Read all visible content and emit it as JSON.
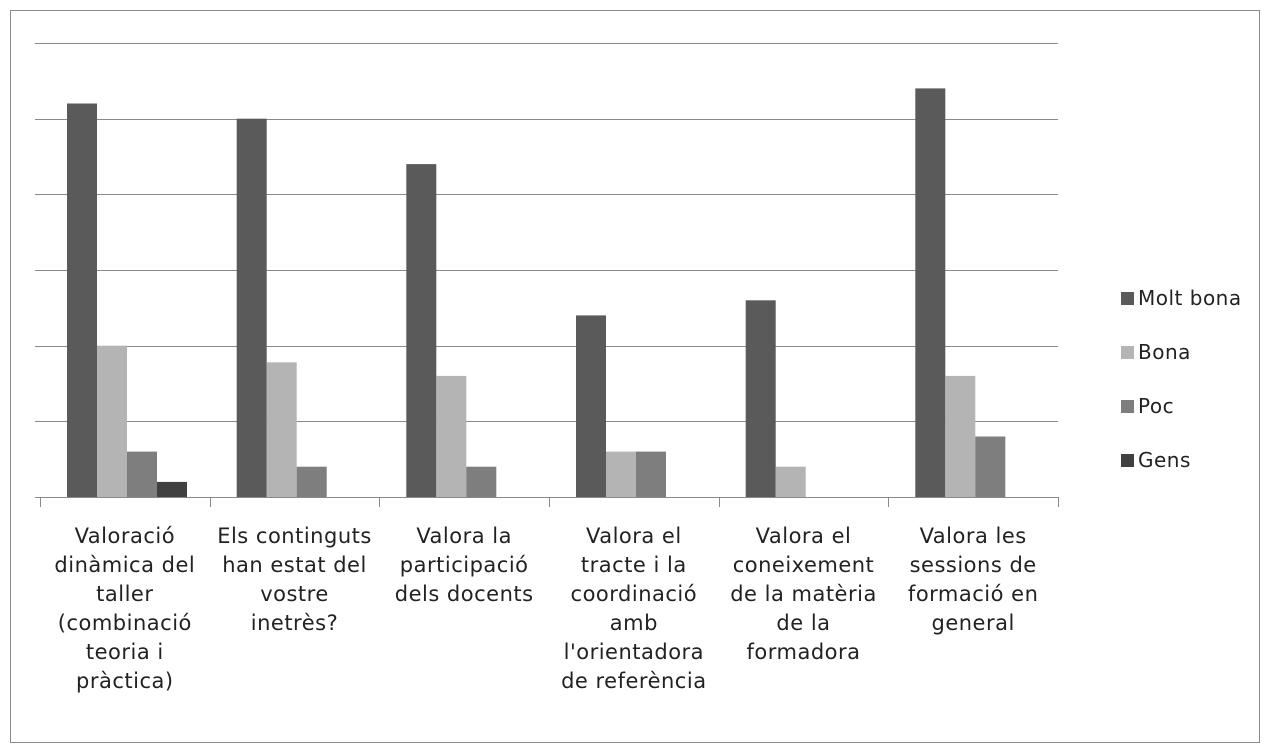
{
  "chart_data": {
    "type": "bar",
    "categories": [
      "Valoració\ndinàmica del\ntaller\n(combinació\nteoria i\npràctica)",
      "Els continguts\nhan estat del\nvostre\ninetrès?",
      "Valora la\nparticipació\ndels docents",
      "Valora el\ntracte i la\ncoordinació\namb\nl'orientadora\nde referència",
      "Valora el\nconeixement\nde la matèria\nde la\nformadora",
      "Valora les\nsessions de\nformació en\ngeneral"
    ],
    "series": [
      {
        "name": "Molt bona",
        "color": "#5a5a5a",
        "values": [
          26,
          25,
          22,
          12,
          13,
          27
        ]
      },
      {
        "name": "Bona",
        "color": "#b4b4b4",
        "values": [
          10,
          8.9,
          8,
          3,
          2,
          8
        ]
      },
      {
        "name": "Poc",
        "color": "#7e7e7e",
        "values": [
          3,
          2,
          2,
          3,
          0,
          4
        ]
      },
      {
        "name": "Gens",
        "color": "#404040",
        "values": [
          1,
          0,
          0,
          0,
          0,
          0
        ]
      }
    ],
    "ylim": [
      0,
      30
    ],
    "gridlines": true,
    "legend_position": "right",
    "title": "",
    "xlabel": "",
    "ylabel": ""
  }
}
